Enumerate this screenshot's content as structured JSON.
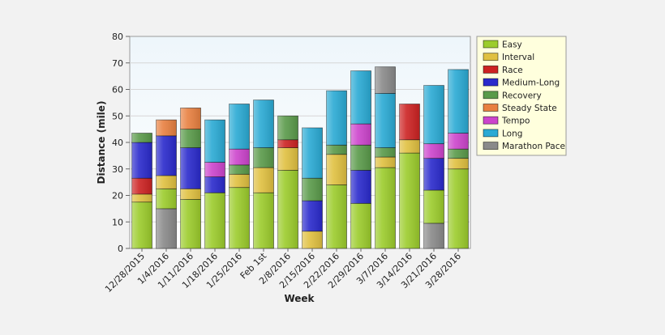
{
  "chart_data": {
    "type": "bar",
    "stacked": true,
    "xlabel": "Week",
    "ylabel": "Distance (mile)",
    "ylim": [
      0,
      80
    ],
    "yticks": [
      0,
      10,
      20,
      30,
      40,
      50,
      60,
      70,
      80
    ],
    "grid": "horizontal",
    "legend_position": "top-right",
    "categories": [
      "12/28/2015",
      "1/4/2016",
      "1/11/2016",
      "1/18/2016",
      "1/25/2016",
      "Feb 1st",
      "2/8/2016",
      "2/15/2016",
      "2/22/2016",
      "2/29/2016",
      "3/7/2016",
      "3/14/2016",
      "3/21/2016",
      "3/28/2016"
    ],
    "series": [
      {
        "name": "Marathon Pace",
        "color": "#8a8a8a",
        "values": [
          0,
          15,
          0,
          0,
          0,
          0,
          0,
          0,
          0,
          0,
          0,
          0,
          9.5,
          0
        ]
      },
      {
        "name": "Easy",
        "color": "#9ccc2c",
        "values": [
          17.5,
          7.5,
          18.5,
          21,
          23,
          21,
          29.5,
          0,
          24,
          17,
          30.5,
          36,
          12.5,
          30
        ]
      },
      {
        "name": "Interval",
        "color": "#e0c040",
        "values": [
          3,
          5,
          4,
          0,
          5,
          9.5,
          8.5,
          6.5,
          11.5,
          0,
          4,
          5,
          0,
          4
        ]
      },
      {
        "name": "Race",
        "color": "#cc2222",
        "values": [
          6,
          0,
          0,
          0,
          0,
          0,
          3,
          0,
          0,
          0,
          0,
          13.5,
          0,
          0
        ]
      },
      {
        "name": "Medium-Long",
        "color": "#2a2acc",
        "values": [
          13.5,
          15,
          15.5,
          6,
          0,
          0,
          0,
          11.5,
          0,
          12.5,
          0,
          0,
          12,
          0
        ]
      },
      {
        "name": "Recovery",
        "color": "#5a9a4a",
        "values": [
          3.5,
          0,
          7,
          0,
          3.5,
          7.5,
          9,
          8.5,
          3.5,
          9.5,
          3.5,
          0,
          0,
          3.5
        ]
      },
      {
        "name": "Steady State",
        "color": "#e88040",
        "values": [
          0,
          6,
          8,
          0,
          0,
          0,
          0,
          0,
          0,
          0,
          0,
          0,
          0,
          0
        ]
      },
      {
        "name": "Tempo",
        "color": "#cc44cc",
        "values": [
          0,
          0,
          0,
          5.5,
          6,
          0,
          0,
          0,
          0,
          8,
          0,
          0,
          5.5,
          6
        ]
      },
      {
        "name": "Long",
        "color": "#2aaad4",
        "values": [
          0,
          0,
          0,
          16,
          17,
          18,
          0,
          19,
          20.5,
          20,
          20.5,
          0,
          22,
          24
        ]
      },
      {
        "name": "Marathon Pace",
        "color": "#8a8a8a",
        "values": [
          0,
          0,
          0,
          0,
          0,
          0,
          0,
          0,
          0,
          0,
          10,
          0,
          0,
          0
        ]
      }
    ],
    "legend": [
      {
        "name": "Easy",
        "color": "#9ccc2c"
      },
      {
        "name": "Interval",
        "color": "#e0c040"
      },
      {
        "name": "Race",
        "color": "#cc2222"
      },
      {
        "name": "Medium-Long",
        "color": "#2a2acc"
      },
      {
        "name": "Recovery",
        "color": "#5a9a4a"
      },
      {
        "name": "Steady State",
        "color": "#e88040"
      },
      {
        "name": "Tempo",
        "color": "#cc44cc"
      },
      {
        "name": "Long",
        "color": "#2aaad4"
      },
      {
        "name": "Marathon Pace",
        "color": "#8a8a8a"
      }
    ]
  }
}
